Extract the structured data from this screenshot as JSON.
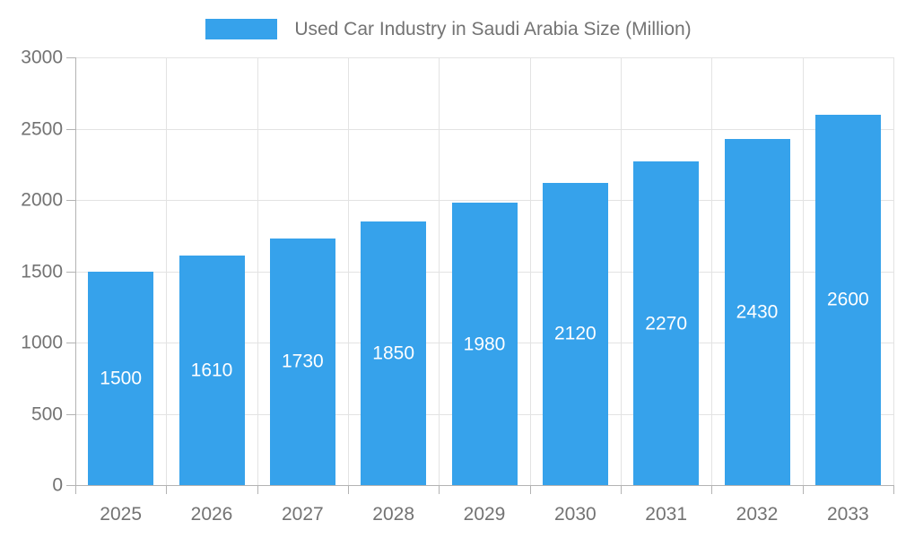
{
  "chart_data": {
    "type": "bar",
    "title": "Used Car Industry in Saudi Arabia Size (Million)",
    "legend_entries": [
      "Used Car Industry in Saudi Arabia Size (Million)"
    ],
    "legend_position": "top-center",
    "categories": [
      "2025",
      "2026",
      "2027",
      "2028",
      "2029",
      "2030",
      "2031",
      "2032",
      "2033"
    ],
    "values": [
      1500,
      1610,
      1730,
      1850,
      1980,
      2120,
      2270,
      2430,
      2600
    ],
    "bar_value_labels": [
      "1500",
      "1610",
      "1730",
      "1850",
      "1980",
      "2120",
      "2270",
      "2430",
      "2600"
    ],
    "xlabel": "",
    "ylabel": "",
    "ylim": [
      0,
      3000
    ],
    "ytick_step": 500,
    "yticks": [
      "0",
      "500",
      "1000",
      "1500",
      "2000",
      "2500",
      "3000"
    ],
    "grid": "on",
    "colors": {
      "bar": "#36a2eb",
      "bar_label": "#ffffff",
      "grid": "#e3e3e3",
      "axis": "#b3b3b3",
      "text": "#737373",
      "background": "#ffffff"
    }
  }
}
